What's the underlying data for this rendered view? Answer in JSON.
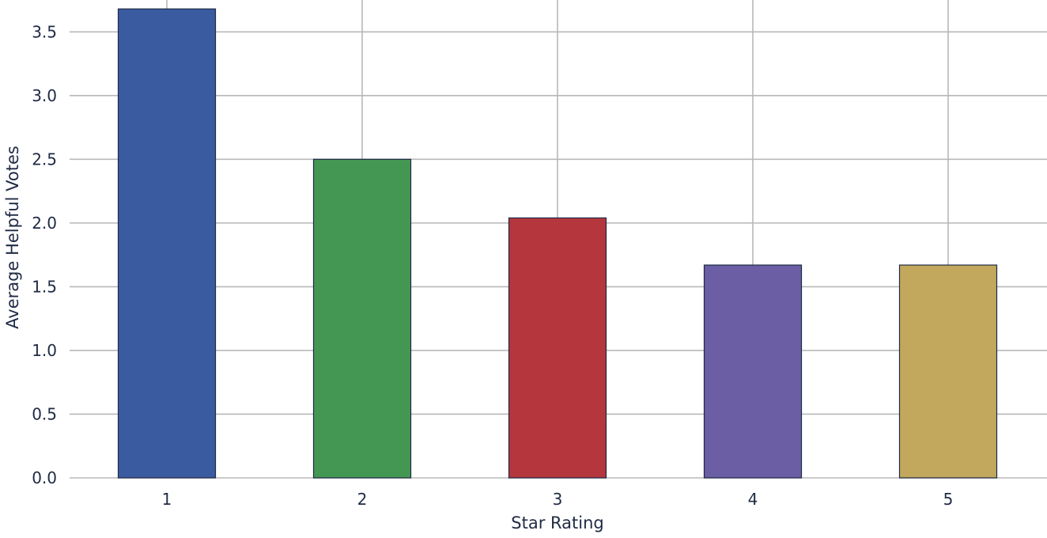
{
  "chart_data": {
    "type": "bar",
    "title": "",
    "xlabel": "Star Rating",
    "ylabel": "Average Helpful Votes",
    "categories": [
      "1",
      "2",
      "3",
      "4",
      "5"
    ],
    "values": [
      3.68,
      2.5,
      2.04,
      1.67,
      1.67
    ],
    "colors": [
      "#3a5ba0",
      "#449753",
      "#b5363d",
      "#6b5ea5",
      "#c2a85c"
    ],
    "ylim": [
      0,
      3.75
    ],
    "yticks": [
      0.0,
      0.5,
      1.0,
      1.5,
      2.0,
      2.5,
      3.0,
      3.5
    ],
    "ytick_labels": [
      "0.0",
      "0.5",
      "1.0",
      "1.5",
      "2.0",
      "2.5",
      "3.0",
      "3.5"
    ],
    "grid": true,
    "legend": "none"
  }
}
